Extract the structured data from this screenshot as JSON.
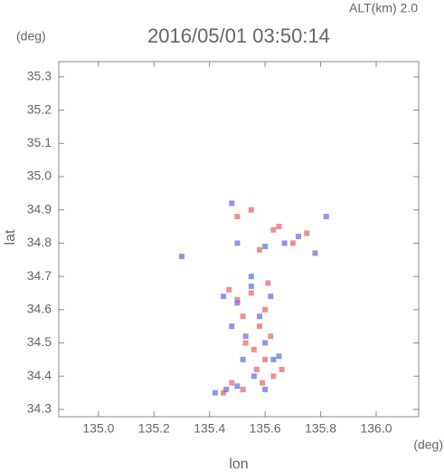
{
  "chart_data": {
    "type": "scatter",
    "title": "2016/05/01 03:50:14",
    "subtitle": "ALT(km)  2.0",
    "x_label": "lon",
    "y_label": "lat",
    "x_unit": "(deg)",
    "y_unit": "(deg)",
    "xlim": [
      134.857,
      136.153
    ],
    "ylim": [
      34.278,
      35.346
    ],
    "xticks": [
      {
        "value": 135,
        "label": "135.0"
      },
      {
        "value": 135.2,
        "label": "135.2"
      },
      {
        "value": 135.4,
        "label": "135.4"
      },
      {
        "value": 135.6,
        "label": "135.6"
      },
      {
        "value": 135.8,
        "label": "135.8"
      },
      {
        "value": 136,
        "label": "136.0"
      }
    ],
    "yticks": [
      {
        "value": 34.3,
        "label": "34.3"
      },
      34.4,
      34.5,
      34.6,
      34.7,
      34.8,
      34.9,
      {
        "value": 35,
        "label": "35.0"
      },
      35.1,
      35.2,
      35.3
    ],
    "series": [
      {
        "color": "#e86a6a",
        "x": [
          135.47,
          135.55,
          135.6,
          135.52,
          135.58,
          135.62,
          135.5,
          135.56,
          135.6,
          135.53,
          135.57,
          135.63,
          135.48,
          135.59,
          135.66,
          135.45,
          135.52,
          135.61,
          135.7,
          135.58,
          135.75,
          135.65,
          135.5,
          135.55,
          135.63
        ],
        "y": [
          34.66,
          34.65,
          34.6,
          34.58,
          34.55,
          34.52,
          34.63,
          34.48,
          34.45,
          34.5,
          34.42,
          34.4,
          34.38,
          34.38,
          34.42,
          34.35,
          34.36,
          34.68,
          34.8,
          34.78,
          34.83,
          34.85,
          34.88,
          34.9,
          34.84
        ]
      },
      {
        "color": "#6a72e8",
        "x": [
          135.45,
          135.5,
          135.55,
          135.62,
          135.48,
          135.58,
          135.6,
          135.52,
          135.56,
          135.63,
          135.5,
          135.46,
          135.6,
          135.65,
          135.55,
          135.42,
          135.67,
          135.72,
          135.82,
          135.78,
          135.5,
          135.48,
          135.6,
          135.3,
          135.53
        ],
        "y": [
          34.64,
          34.62,
          34.67,
          34.64,
          34.55,
          34.58,
          34.5,
          34.45,
          34.4,
          34.45,
          34.37,
          34.36,
          34.36,
          34.46,
          34.7,
          34.35,
          34.8,
          34.82,
          34.88,
          34.77,
          34.8,
          34.92,
          34.79,
          34.76,
          34.52
        ]
      }
    ]
  }
}
